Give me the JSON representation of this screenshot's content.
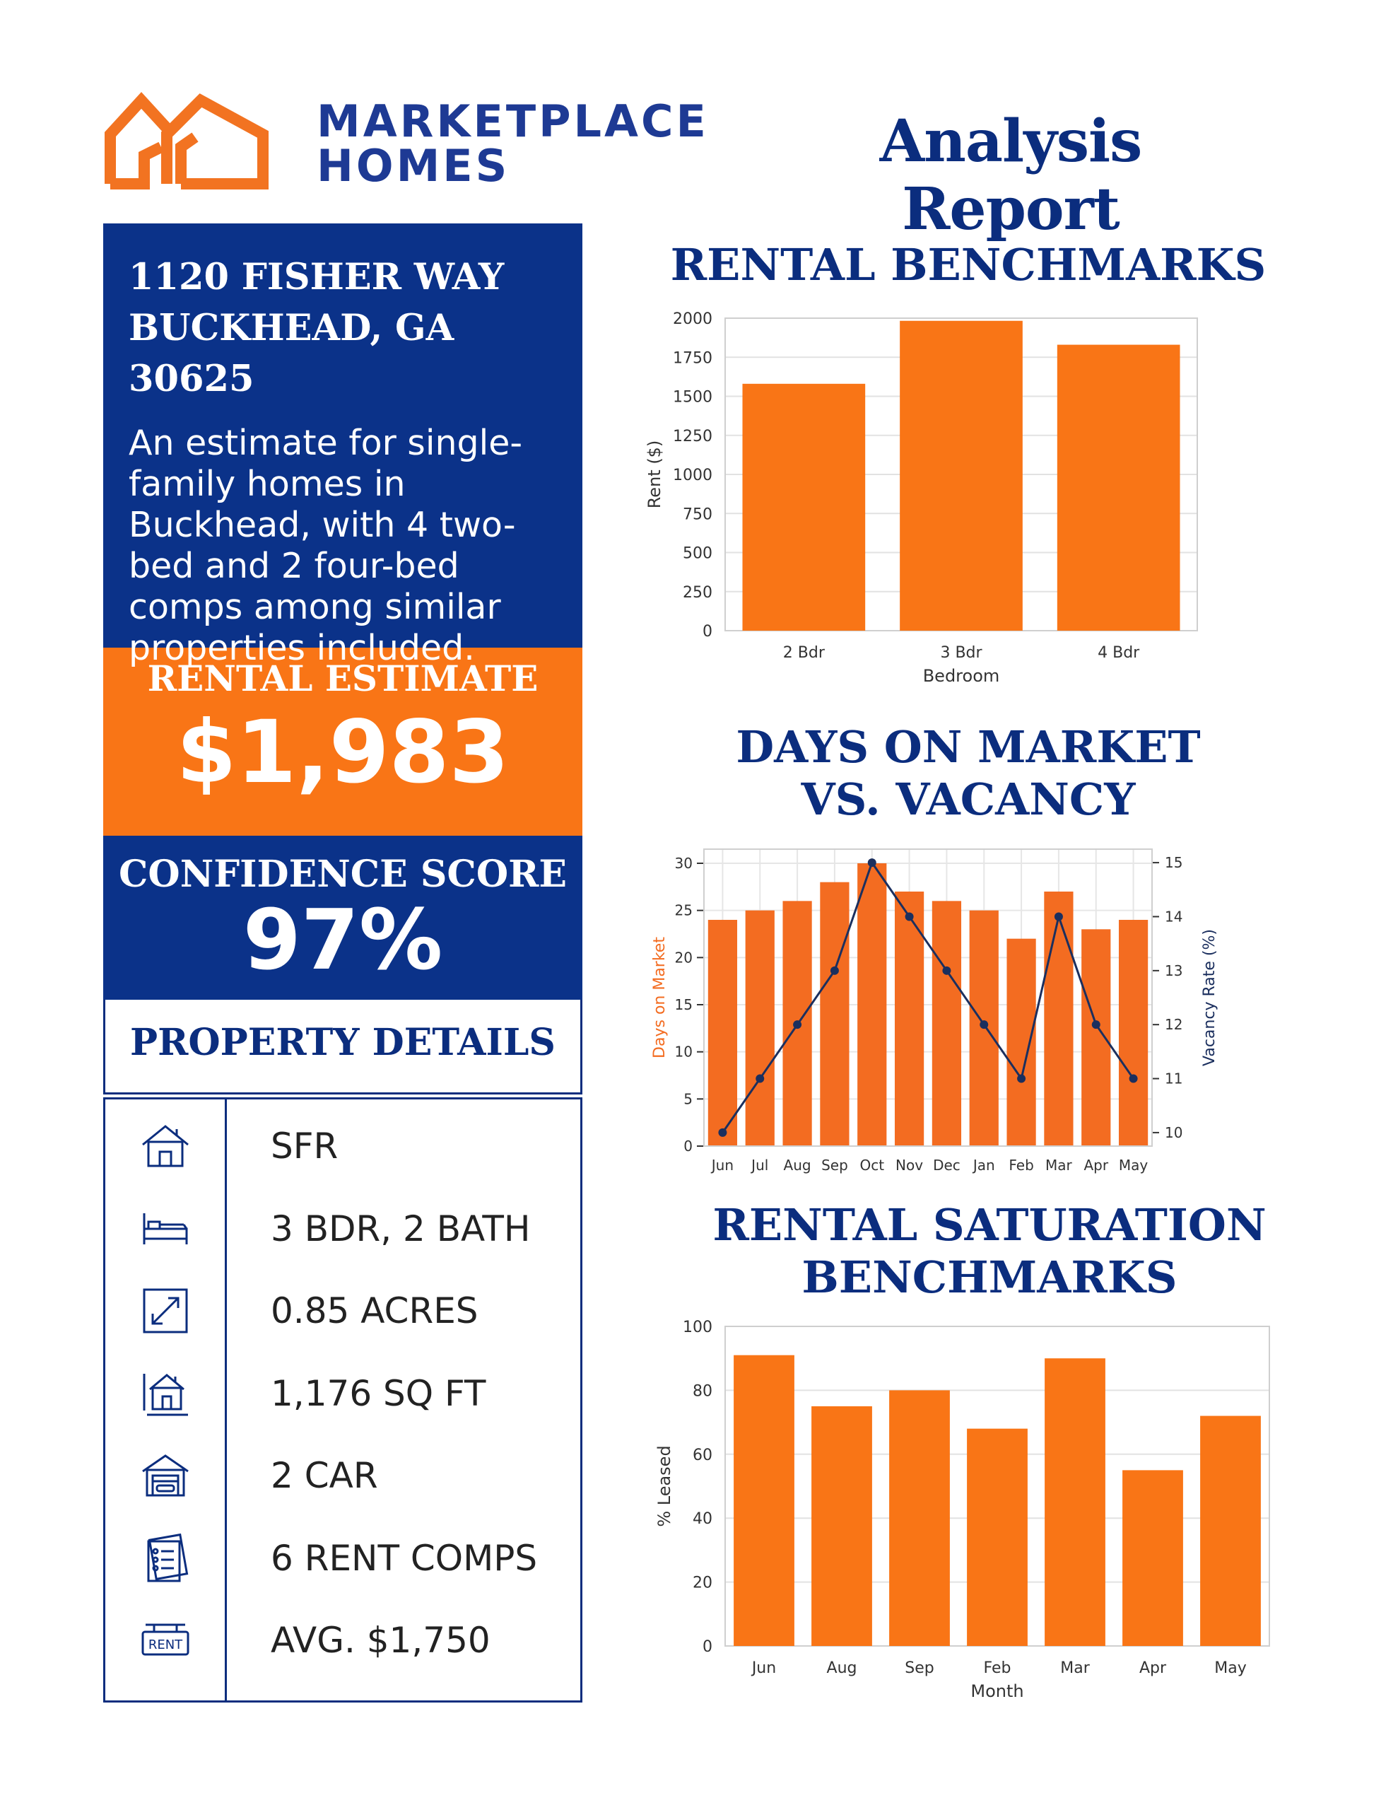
{
  "brand": {
    "line1": "MARKETPLACE",
    "line2": "HOMES",
    "accent": "#f97516",
    "navy": "#0b2d7e"
  },
  "report_title": "Analysis Report",
  "property": {
    "address_line1": "1120 FISHER WAY",
    "address_line2": "BUCKHEAD, GA 30625",
    "description": "An estimate for single-family homes in Buckhead, with 4 two-bed and 2 four-bed comps among similar properties included."
  },
  "estimate": {
    "label": "RENTAL ESTIMATE",
    "value": "$1,983"
  },
  "confidence": {
    "label": "CONFIDENCE SCORE",
    "value": "97%"
  },
  "details": {
    "title": "PROPERTY DETAILS",
    "rows": [
      {
        "icon": "house-icon",
        "text": "SFR"
      },
      {
        "icon": "bed-icon",
        "text": "3 BDR, 2 BATH"
      },
      {
        "icon": "area-icon",
        "text": "0.85 ACRES"
      },
      {
        "icon": "floorplan-icon",
        "text": "1,176 SQ FT"
      },
      {
        "icon": "garage-icon",
        "text": "2 CAR"
      },
      {
        "icon": "checklist-icon",
        "text": "6 RENT COMPS"
      },
      {
        "icon": "rent-sign-icon",
        "text": "AVG. $1,750"
      }
    ],
    "rent_sign_text": "RENT"
  },
  "sections": {
    "benchmarks": "RENTAL BENCHMARKS",
    "dom": "DAYS ON MARKET VS. VACANCY",
    "saturation": "RENTAL SATURATION BENCHMARKS"
  },
  "chart_data": [
    {
      "type": "bar",
      "title": "RENTAL BENCHMARKS",
      "categories": [
        "2 Bdr",
        "3 Bdr",
        "4 Bdr"
      ],
      "values": [
        1580,
        1983,
        1830
      ],
      "xlabel": "Bedroom",
      "ylabel": "Rent ($)",
      "ylim": [
        0,
        2000
      ],
      "yticks": [
        0,
        250,
        500,
        750,
        1000,
        1250,
        1500,
        1750,
        2000
      ],
      "grid": true,
      "color": "#f97516"
    },
    {
      "type": "bar",
      "title": "DAYS ON MARKET VS. VACANCY",
      "categories": [
        "Jun",
        "Jul",
        "Aug",
        "Sep",
        "Oct",
        "Nov",
        "Dec",
        "Jan",
        "Feb",
        "Mar",
        "Apr",
        "May"
      ],
      "series": [
        {
          "name": "Days on Market",
          "type": "bar",
          "axis": "left",
          "values": [
            24,
            25,
            26,
            28,
            30,
            27,
            26,
            25,
            22,
            27,
            23,
            24
          ],
          "color": "#f36c21"
        },
        {
          "name": "Vacancy Rate (%)",
          "type": "line",
          "axis": "right",
          "values": [
            10,
            11,
            12,
            13,
            15,
            14,
            13,
            12,
            11,
            14,
            12,
            11
          ],
          "color": "#1b2f5e"
        }
      ],
      "ylabel": "Days on Market",
      "ylabel_right": "Vacancy Rate (%)",
      "ylim": [
        0,
        31.5
      ],
      "ylim_right": [
        9.75,
        15.25
      ],
      "yticks": [
        0,
        5,
        10,
        15,
        20,
        25,
        30
      ],
      "yticks_right": [
        10,
        11,
        12,
        13,
        14,
        15
      ],
      "grid": true
    },
    {
      "type": "bar",
      "title": "RENTAL SATURATION BENCHMARKS",
      "categories": [
        "Jun",
        "Aug",
        "Sep",
        "Feb",
        "Mar",
        "Apr",
        "May"
      ],
      "values": [
        91,
        75,
        80,
        68,
        90,
        55,
        72
      ],
      "xlabel": "Month",
      "ylabel": "% Leased",
      "ylim": [
        0,
        100
      ],
      "yticks": [
        0,
        20,
        40,
        60,
        80,
        100
      ],
      "grid": true,
      "color": "#f97516"
    }
  ]
}
